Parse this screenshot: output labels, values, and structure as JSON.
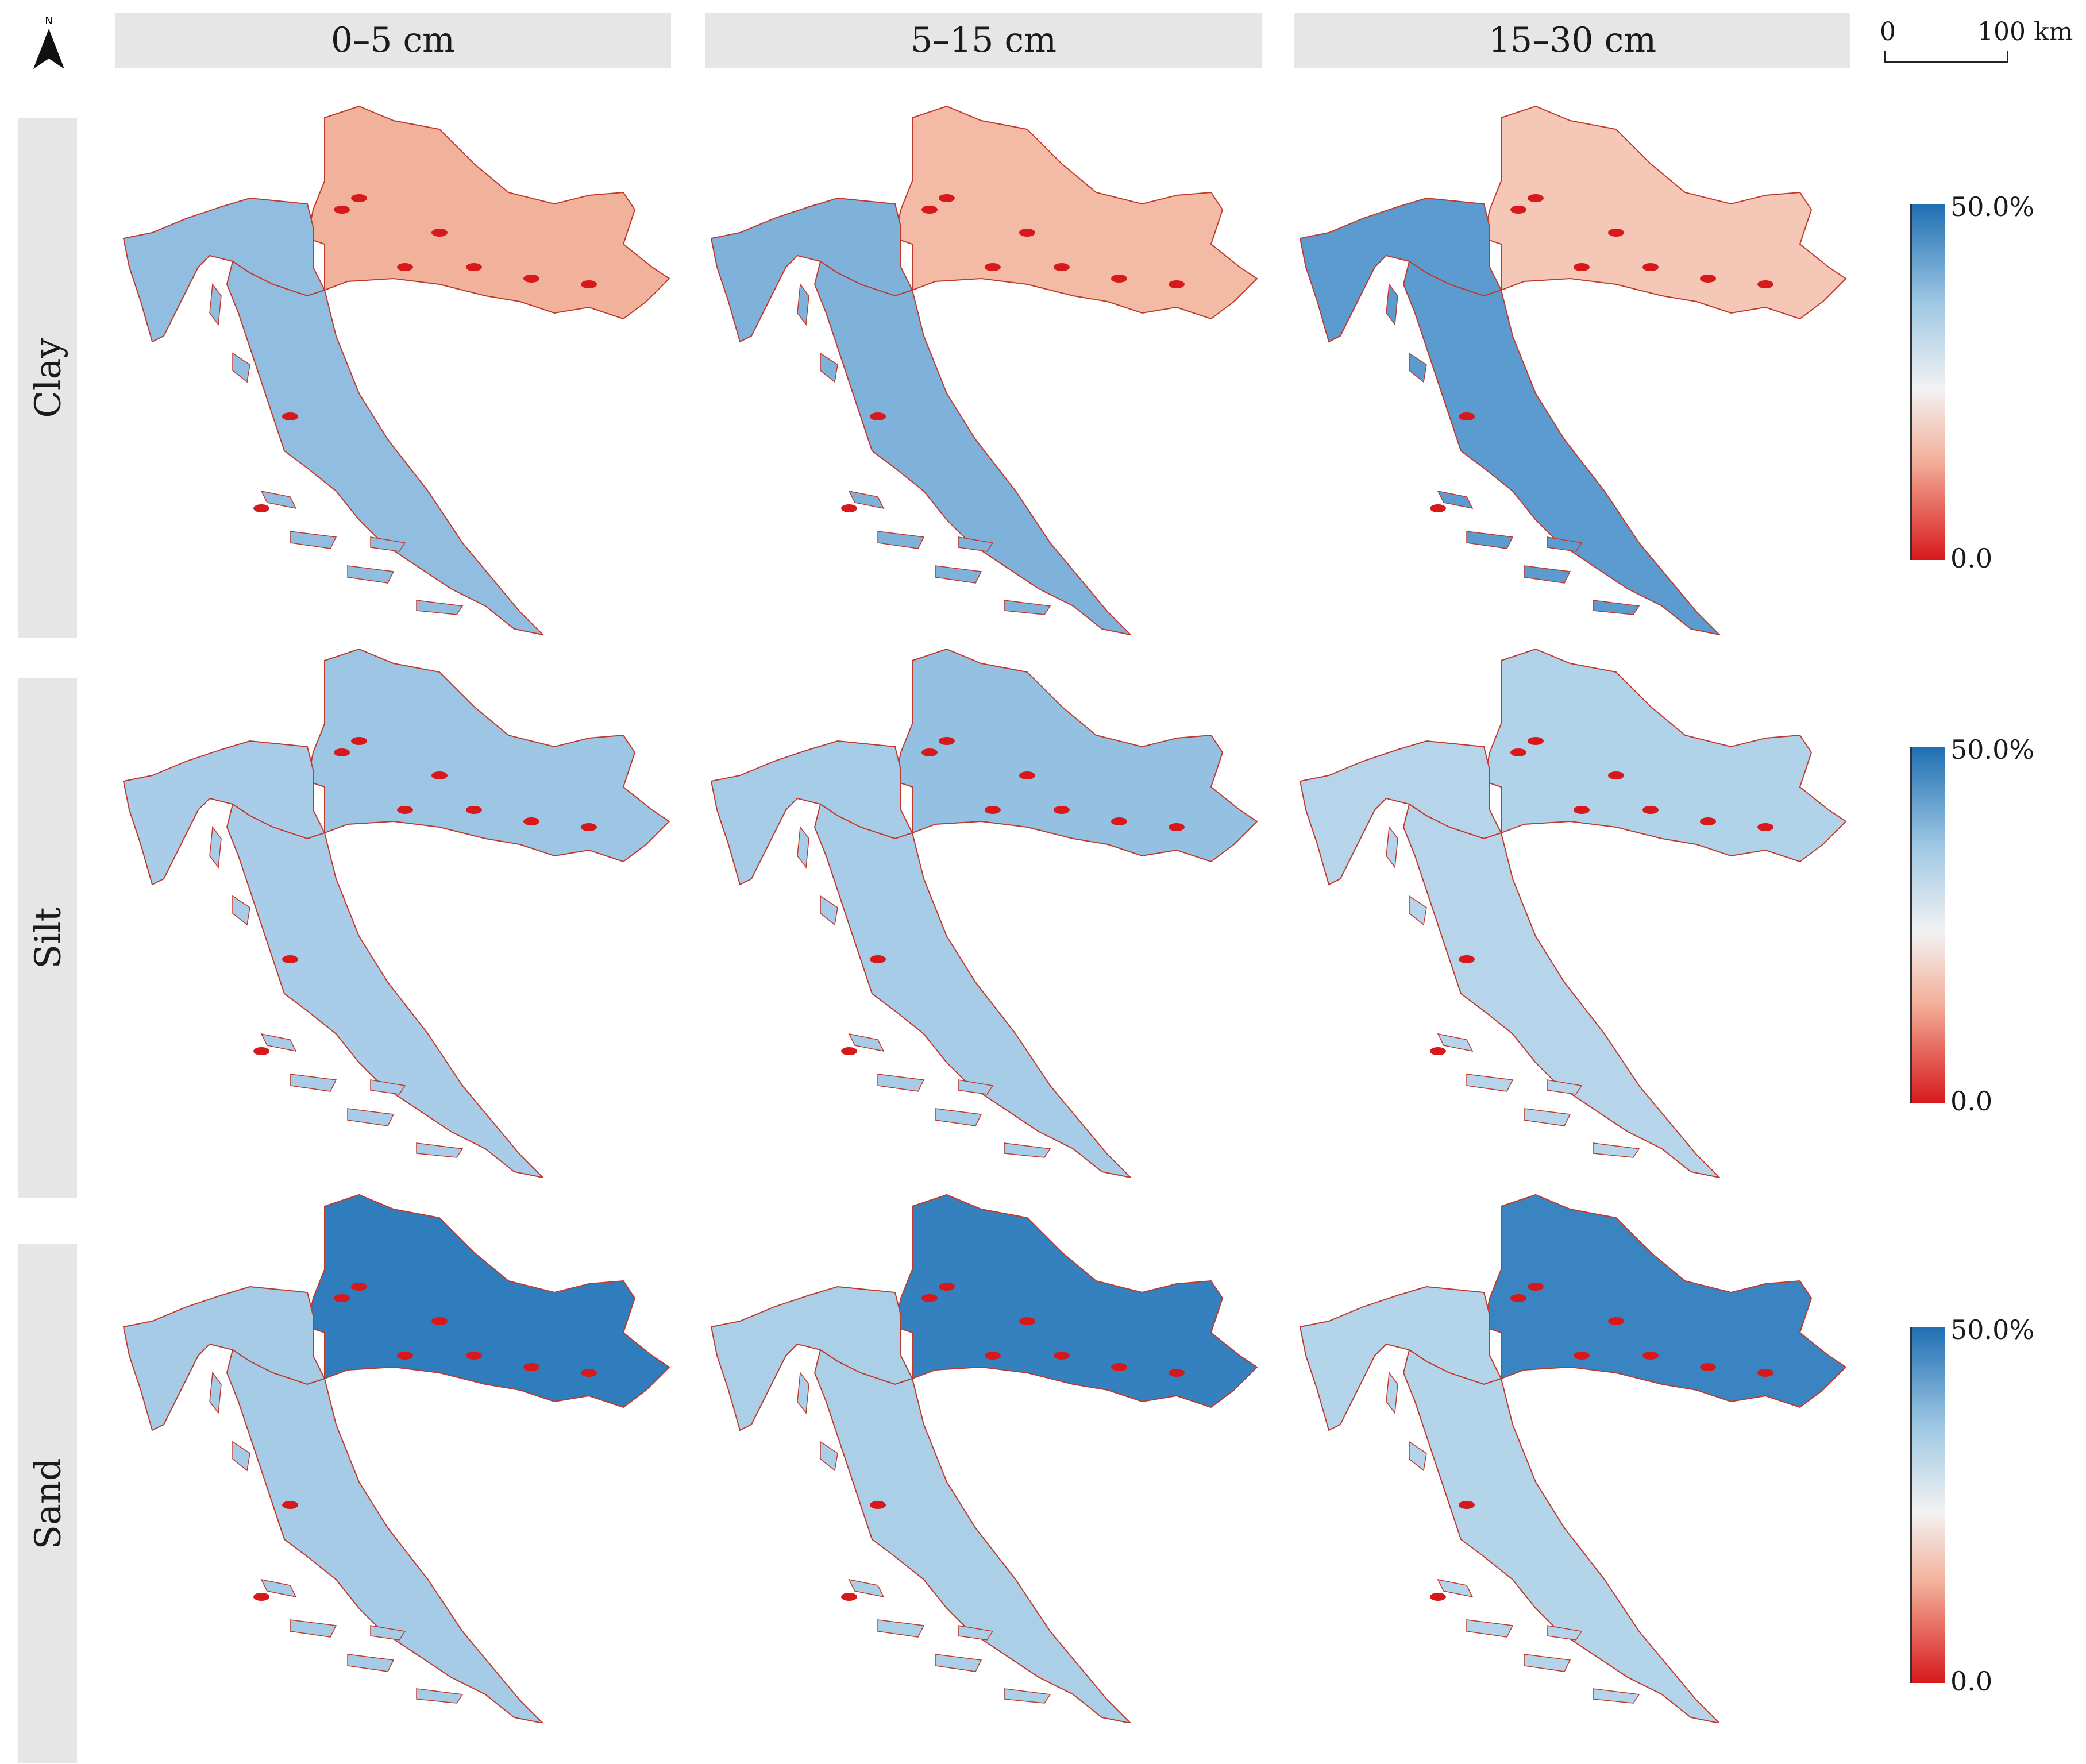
{
  "figure": {
    "columns": [
      "0–5 cm",
      "5–15 cm",
      "15–30 cm"
    ],
    "rows": [
      "Clay",
      "Silt",
      "Sand"
    ],
    "legend": {
      "max_label": "50.0%",
      "min_label": "0.0"
    },
    "scale_bar": {
      "zero_label": "0",
      "max_label": "100 km"
    },
    "north_arrow": {
      "label": "N",
      "icon": "north-arrow-icon"
    },
    "colormap": {
      "high": "#1f6fb3",
      "mid_high": "#9fc8e4",
      "mid": "#f2f2f2",
      "mid_low": "#f3b09a",
      "low": "#d7191c"
    },
    "panels": [
      {
        "row": "Clay",
        "depth": "0–5 cm",
        "north": "#f1b29c",
        "south": "#90bde0",
        "hotspots": "#d7191c"
      },
      {
        "row": "Clay",
        "depth": "5–15 cm",
        "north": "#f3bba6",
        "south": "#7fb2da",
        "hotspots": "#d7191c"
      },
      {
        "row": "Clay",
        "depth": "15–30 cm",
        "north": "#f5c7b6",
        "south": "#5b9bcf",
        "hotspots": "#d7191c"
      },
      {
        "row": "Silt",
        "depth": "0–5 cm",
        "north": "#9dc6e4",
        "south": "#a9cde8",
        "hotspots": "#d7191c"
      },
      {
        "row": "Silt",
        "depth": "5–15 cm",
        "north": "#94c0e1",
        "south": "#a7cce7",
        "hotspots": "#d7191c"
      },
      {
        "row": "Silt",
        "depth": "15–30 cm",
        "north": "#b1d3ea",
        "south": "#b6d5eb",
        "hotspots": "#d7191c"
      },
      {
        "row": "Sand",
        "depth": "0–5 cm",
        "north": "#2f7dbd",
        "south": "#a5cbe7",
        "hotspots": "#d7191c"
      },
      {
        "row": "Sand",
        "depth": "5–15 cm",
        "north": "#3581bf",
        "south": "#accfe8",
        "hotspots": "#d7191c"
      },
      {
        "row": "Sand",
        "depth": "15–30 cm",
        "north": "#3a85c1",
        "south": "#b4d4ea",
        "hotspots": "#d7191c"
      }
    ]
  }
}
